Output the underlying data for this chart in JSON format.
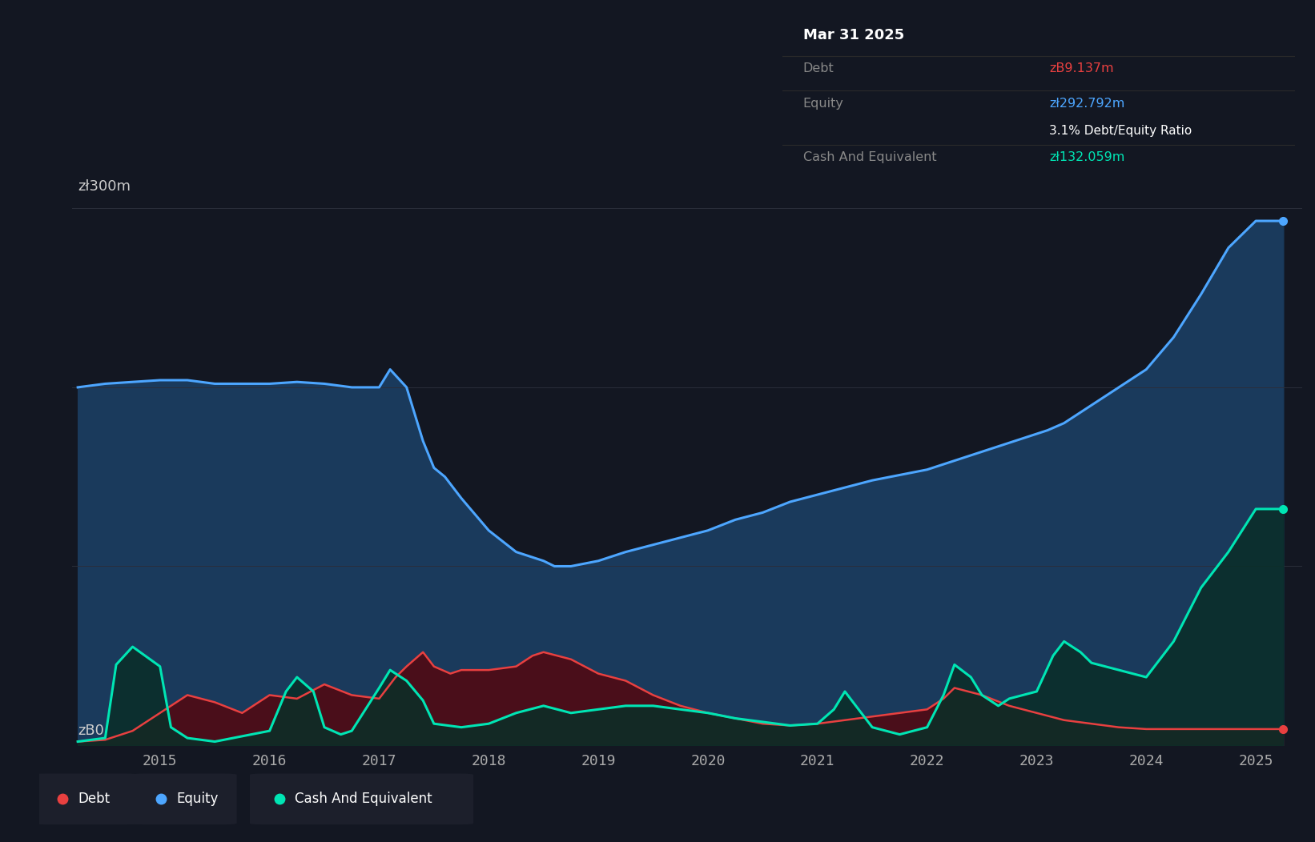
{
  "background_color": "#131722",
  "plot_bg_color": "#131722",
  "ylabel_300": "zł300m",
  "ylabel_0": "zB0",
  "tooltip_title": "Mar 31 2025",
  "tooltip_debt_label": "Debt",
  "tooltip_debt_value": "zB9.137m",
  "tooltip_equity_label": "Equity",
  "tooltip_equity_value": "zł292.792m",
  "tooltip_ratio": "3.1% Debt/Equity Ratio",
  "tooltip_cash_label": "Cash And Equivalent",
  "tooltip_cash_value": "zł132.059m",
  "debt_color": "#e84040",
  "equity_color": "#4da6ff",
  "cash_color": "#00e5b4",
  "equity_fill_color": "#1a3a5c",
  "debt_fill_color": "#4a0e1a",
  "cash_fill_color": "#0a2e28",
  "grid_color": "#2a2e3a",
  "text_color": "#bbbbbb",
  "year_label_color": "#888888",
  "tooltip_bg": "#070707",
  "legend_bg": "#1c1f2b",
  "equity_data": {
    "dates": [
      2014.25,
      2014.5,
      2014.75,
      2015.0,
      2015.1,
      2015.25,
      2015.5,
      2015.75,
      2016.0,
      2016.25,
      2016.5,
      2016.75,
      2016.9,
      2017.0,
      2017.1,
      2017.25,
      2017.4,
      2017.5,
      2017.6,
      2017.75,
      2018.0,
      2018.25,
      2018.5,
      2018.6,
      2018.75,
      2019.0,
      2019.25,
      2019.5,
      2019.75,
      2020.0,
      2020.25,
      2020.5,
      2020.75,
      2021.0,
      2021.25,
      2021.5,
      2021.75,
      2022.0,
      2022.25,
      2022.5,
      2022.75,
      2023.0,
      2023.1,
      2023.25,
      2023.5,
      2023.75,
      2024.0,
      2024.25,
      2024.5,
      2024.75,
      2025.0,
      2025.25
    ],
    "values": [
      200,
      202,
      203,
      204,
      204,
      204,
      202,
      202,
      202,
      203,
      202,
      200,
      200,
      200,
      210,
      200,
      170,
      155,
      150,
      138,
      120,
      108,
      103,
      100,
      100,
      103,
      108,
      112,
      116,
      120,
      126,
      130,
      136,
      140,
      144,
      148,
      151,
      154,
      159,
      164,
      169,
      174,
      176,
      180,
      190,
      200,
      210,
      228,
      252,
      278,
      293,
      293
    ]
  },
  "debt_data": {
    "dates": [
      2014.25,
      2014.5,
      2014.75,
      2015.0,
      2015.1,
      2015.25,
      2015.5,
      2015.75,
      2016.0,
      2016.25,
      2016.5,
      2016.75,
      2017.0,
      2017.15,
      2017.25,
      2017.4,
      2017.5,
      2017.65,
      2017.75,
      2018.0,
      2018.25,
      2018.4,
      2018.5,
      2018.75,
      2019.0,
      2019.25,
      2019.5,
      2019.75,
      2020.0,
      2020.25,
      2020.5,
      2020.75,
      2021.0,
      2021.25,
      2021.5,
      2021.75,
      2022.0,
      2022.15,
      2022.25,
      2022.5,
      2022.75,
      2023.0,
      2023.25,
      2023.5,
      2023.75,
      2024.0,
      2024.25,
      2024.5,
      2024.75,
      2025.0,
      2025.25
    ],
    "values": [
      2,
      3,
      8,
      18,
      22,
      28,
      24,
      18,
      28,
      26,
      34,
      28,
      26,
      38,
      44,
      52,
      44,
      40,
      42,
      42,
      44,
      50,
      52,
      48,
      40,
      36,
      28,
      22,
      18,
      15,
      12,
      11,
      12,
      14,
      16,
      18,
      20,
      26,
      32,
      28,
      22,
      18,
      14,
      12,
      10,
      9,
      9,
      9,
      9,
      9,
      9
    ]
  },
  "cash_data": {
    "dates": [
      2014.25,
      2014.5,
      2014.6,
      2014.75,
      2015.0,
      2015.1,
      2015.25,
      2015.5,
      2015.75,
      2016.0,
      2016.15,
      2016.25,
      2016.4,
      2016.5,
      2016.65,
      2016.75,
      2017.0,
      2017.1,
      2017.25,
      2017.4,
      2017.5,
      2017.75,
      2018.0,
      2018.25,
      2018.5,
      2018.75,
      2019.0,
      2019.25,
      2019.5,
      2019.75,
      2020.0,
      2020.25,
      2020.5,
      2020.75,
      2021.0,
      2021.15,
      2021.25,
      2021.4,
      2021.5,
      2021.75,
      2022.0,
      2022.15,
      2022.25,
      2022.4,
      2022.5,
      2022.65,
      2022.75,
      2023.0,
      2023.15,
      2023.25,
      2023.4,
      2023.5,
      2023.75,
      2024.0,
      2024.25,
      2024.5,
      2024.75,
      2025.0,
      2025.25
    ],
    "values": [
      2,
      4,
      45,
      55,
      44,
      10,
      4,
      2,
      5,
      8,
      30,
      38,
      30,
      10,
      6,
      8,
      32,
      42,
      36,
      25,
      12,
      10,
      12,
      18,
      22,
      18,
      20,
      22,
      22,
      20,
      18,
      15,
      13,
      11,
      12,
      20,
      30,
      18,
      10,
      6,
      10,
      28,
      45,
      38,
      28,
      22,
      26,
      30,
      50,
      58,
      52,
      46,
      42,
      38,
      58,
      88,
      108,
      132,
      132
    ]
  },
  "ylim": [
    0,
    320
  ],
  "xlim_start": 2014.2,
  "xlim_end": 2025.42,
  "year_ticks": [
    2015,
    2016,
    2017,
    2018,
    2019,
    2020,
    2021,
    2022,
    2023,
    2024,
    2025
  ]
}
